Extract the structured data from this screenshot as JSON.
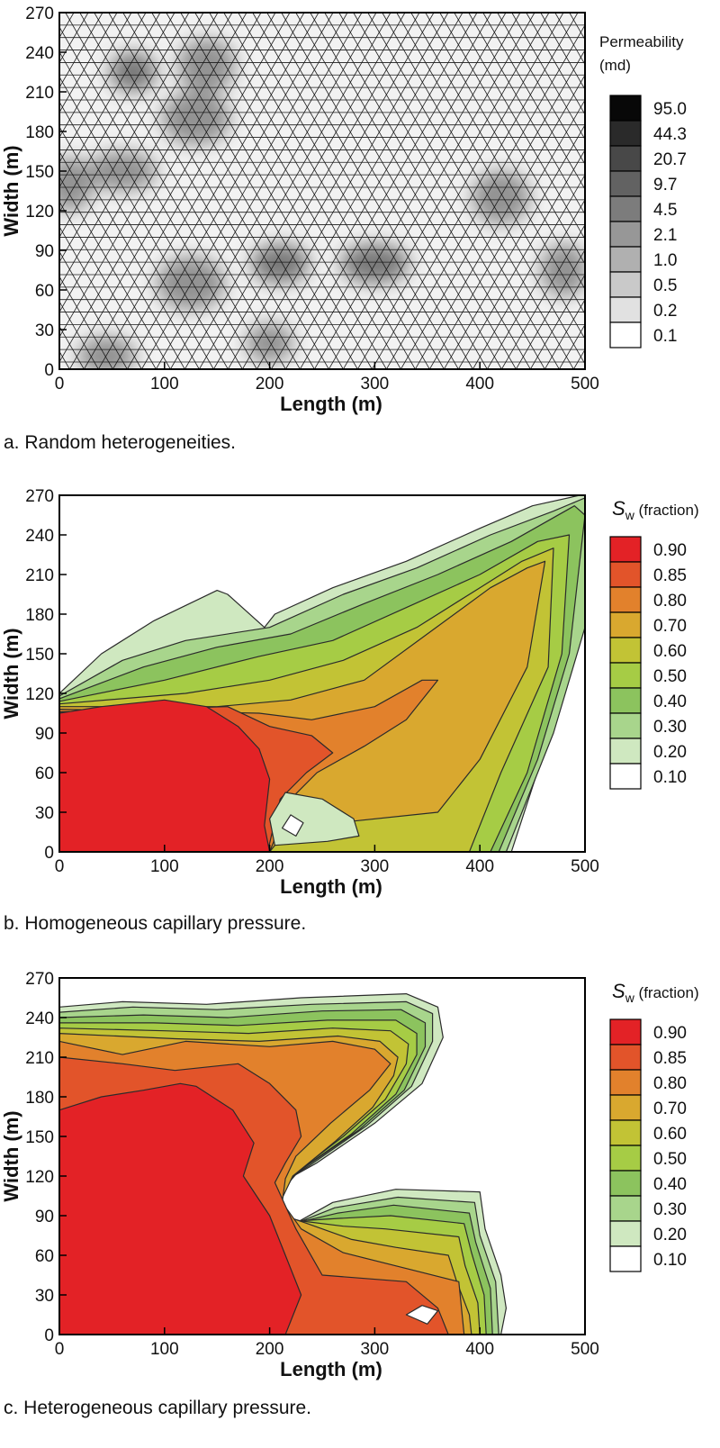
{
  "chart_data": [
    {
      "type": "heatmap",
      "caption": "a. Random heterogeneities.",
      "xlabel": "Length (m)",
      "ylabel": "Width (m)",
      "xlim": [
        0,
        500
      ],
      "ylim": [
        0,
        270
      ],
      "xticks": [
        0,
        100,
        200,
        300,
        400,
        500
      ],
      "yticks": [
        0,
        30,
        60,
        90,
        120,
        150,
        180,
        210,
        240,
        270
      ],
      "legend": {
        "title_lines": [
          "Permeability",
          "(md)"
        ],
        "levels": [
          "95.0",
          "44.3",
          "20.7",
          "9.7",
          "4.5",
          "2.1",
          "1.0",
          "0.5",
          "0.2",
          "0.1"
        ],
        "colors": [
          "#080808",
          "#2a2a2a",
          "#484848",
          "#626262",
          "#7c7c7c",
          "#979797",
          "#b0b0b0",
          "#c9c9c9",
          "#e1e1e1",
          "#ffffff"
        ]
      },
      "mesh": "triangular grid",
      "high_perm_zones": [
        {
          "x": 70,
          "y": 225
        },
        {
          "x": 140,
          "y": 230
        },
        {
          "x": 60,
          "y": 150
        },
        {
          "x": 10,
          "y": 140
        },
        {
          "x": 210,
          "y": 80
        },
        {
          "x": 125,
          "y": 65
        },
        {
          "x": 200,
          "y": 20
        },
        {
          "x": 420,
          "y": 130
        },
        {
          "x": 300,
          "y": 80
        },
        {
          "x": 480,
          "y": 75
        },
        {
          "x": 45,
          "y": 10
        },
        {
          "x": 130,
          "y": 190
        }
      ]
    },
    {
      "type": "heatmap",
      "caption": "b. Homogeneous capillary pressure.",
      "xlabel": "Length (m)",
      "ylabel": "Width (m)",
      "xlim": [
        0,
        500
      ],
      "ylim": [
        0,
        270
      ],
      "xticks": [
        0,
        100,
        200,
        300,
        400,
        500
      ],
      "yticks": [
        0,
        30,
        60,
        90,
        120,
        150,
        180,
        210,
        240,
        270
      ],
      "legend": {
        "title_symbol": "S",
        "title_sub": "w",
        "title_rest": " (fraction)",
        "levels": [
          "0.90",
          "0.85",
          "0.80",
          "0.70",
          "0.60",
          "0.50",
          "0.40",
          "0.30",
          "0.20",
          "0.10"
        ],
        "colors": [
          "#e32226",
          "#e2542a",
          "#e2812c",
          "#d9a82f",
          "#c2c335",
          "#a6cc45",
          "#8cc35e",
          "#a8d58c",
          "#cfe8c0",
          "#ffffff"
        ]
      }
    },
    {
      "type": "heatmap",
      "caption": "c. Heterogeneous capillary pressure.",
      "xlabel": "Length (m)",
      "ylabel": "Width (m)",
      "xlim": [
        0,
        500
      ],
      "ylim": [
        0,
        270
      ],
      "xticks": [
        0,
        100,
        200,
        300,
        400,
        500
      ],
      "yticks": [
        0,
        30,
        60,
        90,
        120,
        150,
        180,
        210,
        240,
        270
      ],
      "legend": {
        "title_symbol": "S",
        "title_sub": "w",
        "title_rest": " (fraction)",
        "levels": [
          "0.90",
          "0.85",
          "0.80",
          "0.70",
          "0.60",
          "0.50",
          "0.40",
          "0.30",
          "0.20",
          "0.10"
        ],
        "colors": [
          "#e32226",
          "#e2542a",
          "#e2812c",
          "#d9a82f",
          "#c2c335",
          "#a6cc45",
          "#8cc35e",
          "#a8d58c",
          "#cfe8c0",
          "#ffffff"
        ]
      }
    }
  ]
}
